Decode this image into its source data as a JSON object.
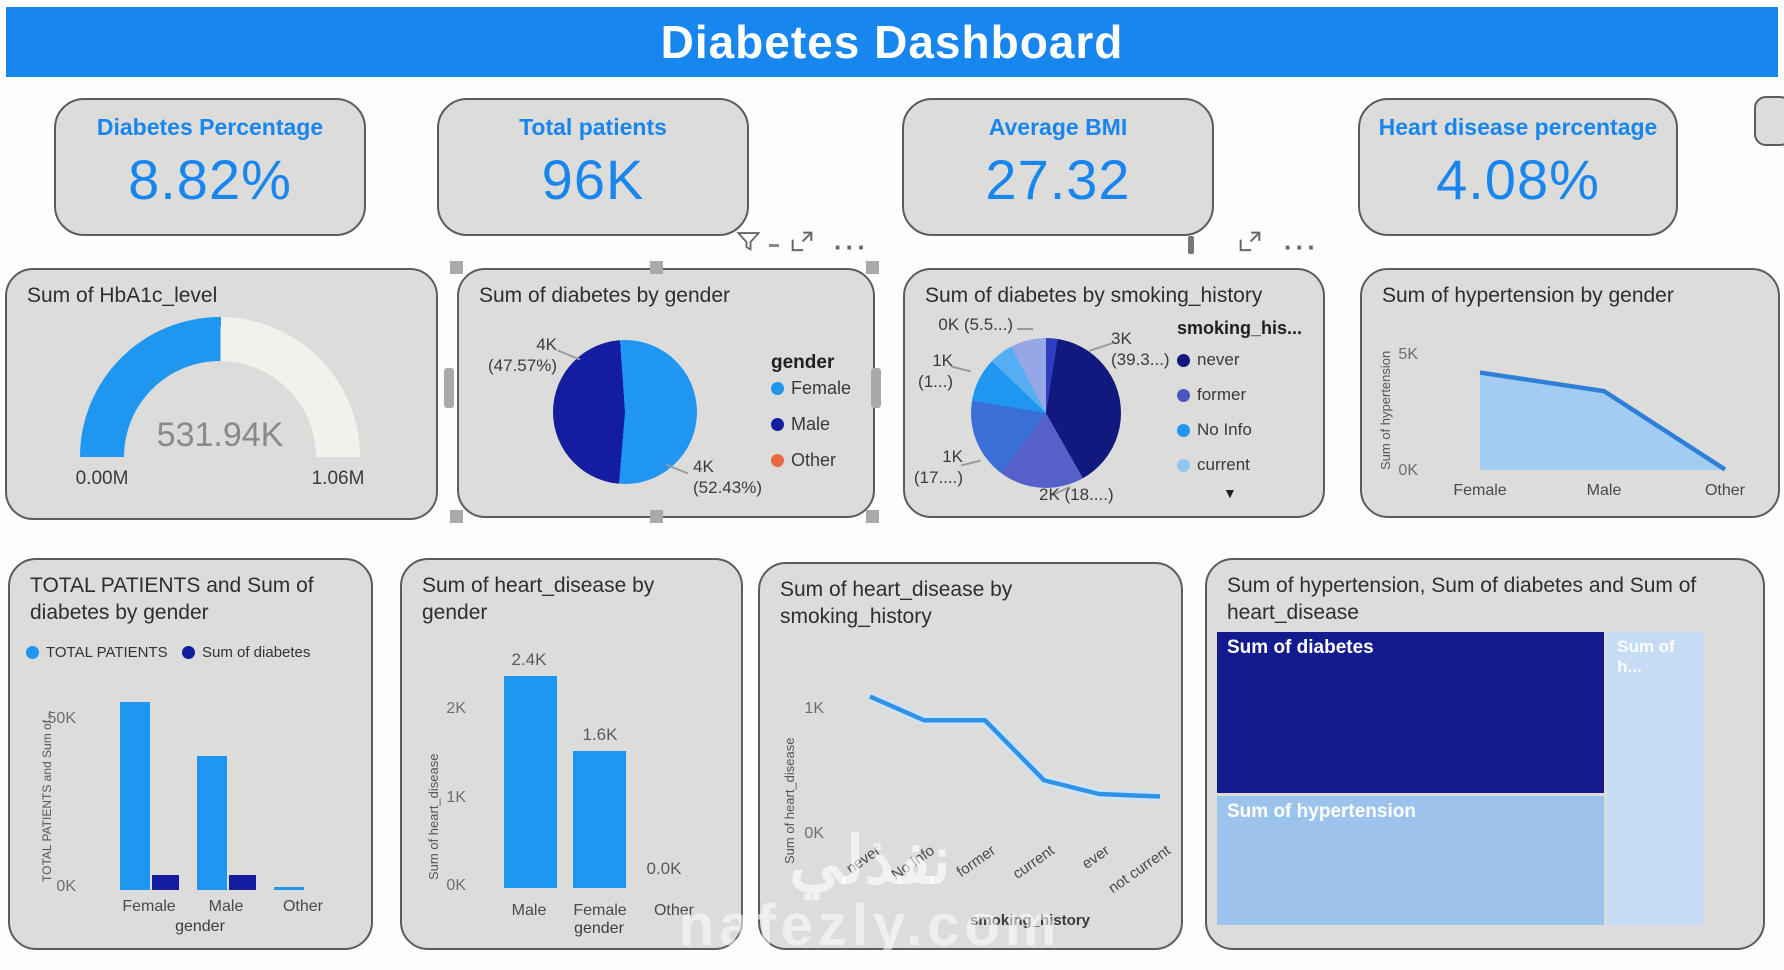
{
  "banner": {
    "title": "Diabetes Dashboard"
  },
  "kpis": [
    {
      "label": "Diabetes Percentage",
      "value": "8.82%"
    },
    {
      "label": "Total patients",
      "value": "96K"
    },
    {
      "label": "Average BMI",
      "value": "27.32"
    },
    {
      "label": "Heart disease percentage",
      "value": "4.08%"
    }
  ],
  "toolbars": [
    {
      "icons": [
        "filter",
        "focus-mode",
        "more-options"
      ]
    },
    {
      "icons": [
        "pin",
        "focus-mode",
        "more-options"
      ]
    }
  ],
  "colors": {
    "banner_blue": "#1886ef",
    "accent_blue": "#1886ee",
    "bright_blue": "#1f96f0",
    "navy": "#141da0",
    "orange": "#e8683f",
    "area_fill": "#a3ccf2",
    "area_line": "#2e7fd8",
    "card_bg": "#dcdcda"
  },
  "watermark": {
    "line1": "نفذلي",
    "line2": "nafezly.com"
  },
  "chart_data": [
    {
      "id": "gauge_hba1c",
      "type": "gauge",
      "title": "Sum of HbA1c_level",
      "value": 531940,
      "value_label": "531.94K",
      "min": 0,
      "max": 1060000,
      "min_label": "0.00M",
      "max_label": "1.06M",
      "fill_color": "#1f96f0",
      "track_color": "#f2f1ee"
    },
    {
      "id": "pie_diabetes_gender",
      "type": "pie",
      "title": "Sum of diabetes by gender",
      "legend_title": "gender",
      "legend_position": "right",
      "start_angle_deg": -4,
      "slices": [
        {
          "label": "Female",
          "value_label": "4K",
          "pct": 52.43,
          "color": "#1f96f0"
        },
        {
          "label": "Male",
          "value_label": "4K",
          "pct": 47.57,
          "color": "#141da0"
        },
        {
          "label": "Other",
          "value_label": "",
          "pct": 0,
          "color": "#e8683f"
        }
      ],
      "callouts": [
        [
          "4K",
          "(47.57%)"
        ],
        [
          "4K",
          "(52.43%)"
        ]
      ]
    },
    {
      "id": "pie_diabetes_smoking",
      "type": "pie",
      "title": "Sum of diabetes by smoking_history",
      "legend_title": "smoking_his...",
      "legend_position": "right",
      "more_indicator": "▼",
      "legend": [
        {
          "label": "never",
          "color": "#12197e"
        },
        {
          "label": "former",
          "color": "#4b55c0"
        },
        {
          "label": "No Info",
          "color": "#1f96f0"
        },
        {
          "label": "current",
          "color": "#8fc6f2"
        }
      ],
      "segments": [
        {
          "pct": 2.5,
          "color": "#2f3dc0"
        },
        {
          "pct": 39.3,
          "color": "#12197e"
        },
        {
          "pct": 18.4,
          "color": "#5560c8"
        },
        {
          "pct": 17.4,
          "color": "#3a6fd8"
        },
        {
          "pct": 9.5,
          "color": "#1f96f0"
        },
        {
          "pct": 5.2,
          "color": "#55aef2"
        },
        {
          "pct": 7.7,
          "color": "#96a7e8"
        }
      ],
      "callouts": [
        [
          "0K (5.5...)"
        ],
        [
          "1K",
          "(1...)"
        ],
        [
          "3K",
          "(39.3...)"
        ],
        [
          "1K",
          "(17....)"
        ],
        [
          "2K (18....)"
        ]
      ]
    },
    {
      "id": "area_hypertension_gender",
      "type": "area",
      "title": "Sum of hypertension by gender",
      "ylabel": "Sum of hypertension",
      "categories": [
        "Female",
        "Male",
        "Other"
      ],
      "values": [
        4.2,
        3.4,
        0.02
      ],
      "yticks": [
        "5K",
        "0K"
      ],
      "ylim": [
        0,
        5.0
      ],
      "grid": false
    },
    {
      "id": "bar_total_diabetes_gender",
      "type": "bar",
      "title": "TOTAL PATIENTS and Sum of diabetes by gender",
      "ylabel": "TOTAL PATIENTS and Sum of...",
      "xlabel": "gender",
      "categories": [
        "Female",
        "Male",
        "Other"
      ],
      "series": [
        {
          "name": "TOTAL PATIENTS",
          "color": "#1f96f0",
          "values": [
            56,
            40,
            0.4
          ]
        },
        {
          "name": "Sum of diabetes",
          "color": "#141da0",
          "values": [
            4.5,
            4.5,
            0
          ]
        }
      ],
      "yticks": [
        "50K",
        "0K"
      ],
      "ylim": [
        0,
        60
      ]
    },
    {
      "id": "bar_heart_gender",
      "type": "bar",
      "title": "Sum of heart_disease by gender",
      "ylabel": "Sum of heart_disease",
      "xlabel": "gender",
      "categories": [
        "Male",
        "Female",
        "Other"
      ],
      "values": [
        2.4,
        1.55,
        0
      ],
      "bar_labels": [
        "2.4K",
        "1.6K",
        "0.0K"
      ],
      "yticks": [
        "2K",
        "1K",
        "0K"
      ],
      "ylim": [
        0,
        2.75
      ],
      "bar_color": "#1f96f0"
    },
    {
      "id": "line_heart_smoking",
      "type": "line",
      "title": "Sum of heart_disease by smoking_history",
      "ylabel": "Sum of heart_disease",
      "xlabel": "smoking_history",
      "categories": [
        "never",
        "No Info",
        "former",
        "current",
        "ever",
        "not current"
      ],
      "values": [
        1.1,
        0.91,
        0.91,
        0.43,
        0.32,
        0.3
      ],
      "yticks": [
        "1K",
        "0K"
      ],
      "ylim": [
        0,
        1.35
      ],
      "line_color": "#2e93e8"
    },
    {
      "id": "treemap_summary",
      "type": "treemap",
      "title": "Sum of hypertension, Sum of diabetes and Sum of heart_disease",
      "blocks": [
        {
          "label": "Sum of diabetes",
          "color": "#141b8e",
          "width_pct": 80,
          "height_pct": 55
        },
        {
          "label": "Sum of hypertension",
          "color": "#9cc3ec",
          "width_pct": 80,
          "height_pct": 45
        },
        {
          "label": "Sum of h...",
          "color": "#c6dcf4",
          "width_pct": 20,
          "height_pct": 100
        }
      ]
    }
  ]
}
